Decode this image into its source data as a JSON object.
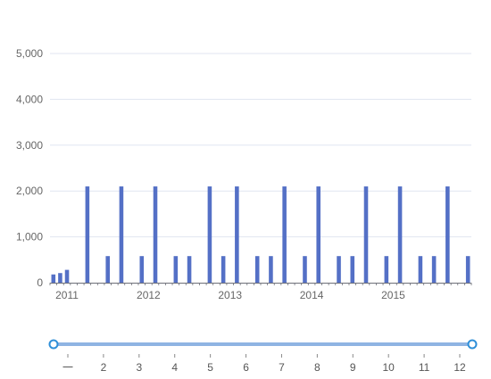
{
  "colors": {
    "bar": "#5470c6",
    "axis": "#6e7079",
    "grid": "#e0e6f1",
    "slider_track": "#8fb4e3",
    "slider_handle": "#2f8fd8"
  },
  "chart_data": {
    "type": "bar",
    "xlabel": "",
    "ylabel": "",
    "ylim": [
      0,
      5000
    ],
    "yticks": [
      "0",
      "1,000",
      "2,000",
      "3,000",
      "4,000",
      "5,000"
    ],
    "grid": true,
    "x_tick_labels": [
      "2011",
      "2012",
      "2013",
      "2014",
      "2015"
    ],
    "x_tick_label_index": [
      2,
      14,
      26,
      38,
      50
    ],
    "slider_labels": [
      "一",
      "2",
      "3",
      "4",
      "5",
      "6",
      "7",
      "8",
      "9",
      "10",
      "11",
      "12"
    ],
    "values": [
      180,
      210,
      280,
      0,
      0,
      2100,
      0,
      0,
      580,
      0,
      2100,
      0,
      0,
      580,
      0,
      2100,
      0,
      0,
      580,
      0,
      580,
      0,
      0,
      2100,
      0,
      580,
      0,
      2100,
      0,
      0,
      580,
      0,
      580,
      0,
      2100,
      0,
      0,
      580,
      0,
      2100,
      0,
      0,
      580,
      0,
      580,
      0,
      2100,
      0,
      0,
      580,
      0,
      2100,
      0,
      0,
      580,
      0,
      580,
      0,
      2100,
      0,
      0,
      580
    ]
  }
}
